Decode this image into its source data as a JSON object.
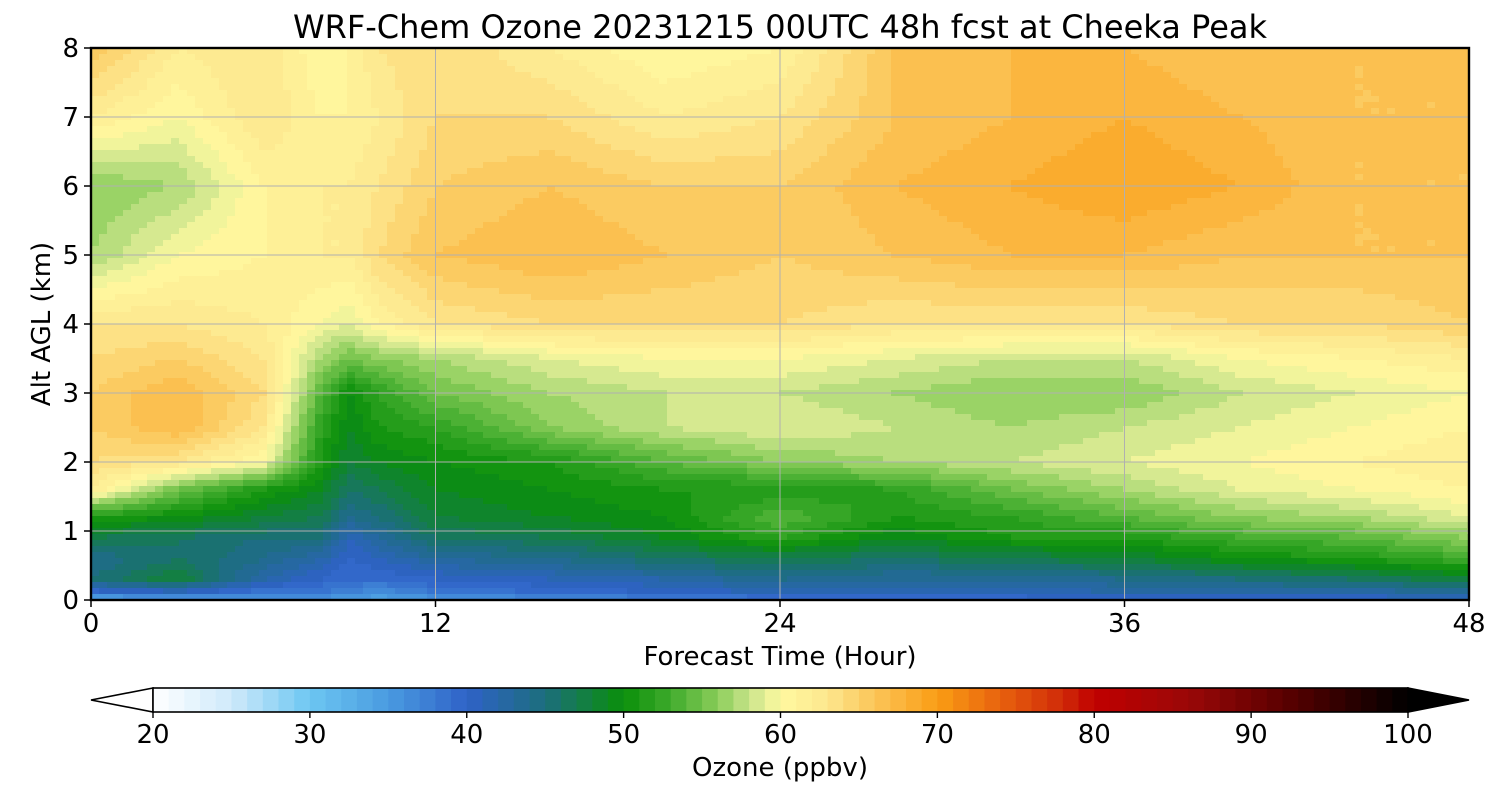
{
  "chart_data": {
    "type": "heatmap",
    "title": "WRF-Chem Ozone  20231215 00UTC 48h fcst at Cheeka Peak",
    "xlabel": "Forecast Time (Hour)",
    "ylabel": "Alt AGL (km)",
    "xlim": [
      0,
      48
    ],
    "ylim": [
      0,
      8
    ],
    "x_ticks": [
      0,
      12,
      24,
      36,
      48
    ],
    "y_ticks": [
      0,
      1,
      2,
      3,
      4,
      5,
      6,
      7,
      8
    ],
    "grid": true,
    "x": [
      0,
      3,
      6,
      8,
      9,
      10,
      12,
      16,
      20,
      24,
      28,
      32,
      36,
      40,
      44,
      48
    ],
    "y": [
      0,
      0.1,
      0.3,
      0.6,
      0.9,
      1.2,
      1.6,
      2.0,
      2.5,
      3.0,
      3.5,
      4.0,
      5.0,
      6.0,
      7.0,
      8.0
    ],
    "z": [
      [
        33,
        34,
        36,
        35,
        34,
        34,
        35,
        36,
        37,
        38,
        38,
        39,
        40,
        40,
        40,
        40
      ],
      [
        39,
        40,
        38,
        38,
        37,
        36,
        38,
        39,
        40,
        41,
        41,
        41,
        42,
        42,
        42,
        43
      ],
      [
        45,
        48,
        42,
        40,
        39,
        39,
        40,
        41,
        42,
        44,
        43,
        43,
        44,
        45,
        46,
        48
      ],
      [
        44,
        46,
        44,
        42,
        40,
        41,
        43,
        44,
        46,
        47,
        46,
        47,
        48,
        50,
        51,
        53
      ],
      [
        47,
        46,
        45,
        45,
        41,
        43,
        46,
        47,
        49,
        52,
        49,
        51,
        51,
        53,
        54,
        56
      ],
      [
        51,
        50,
        48,
        47,
        44,
        45,
        48,
        49,
        50,
        54,
        51,
        52,
        54,
        56,
        57,
        59
      ],
      [
        62,
        55,
        51,
        49,
        46,
        47,
        49,
        50,
        51,
        51,
        52,
        55,
        57,
        59,
        60,
        61
      ],
      [
        64,
        63,
        60,
        51,
        48,
        49,
        50,
        51,
        54,
        56,
        57,
        58,
        59,
        60,
        61,
        62
      ],
      [
        65,
        67,
        63,
        52,
        49,
        51,
        52,
        56,
        58,
        59,
        58,
        57,
        58,
        59,
        60,
        61
      ],
      [
        65,
        67,
        64,
        54,
        50,
        52,
        55,
        57,
        58,
        58,
        57,
        56,
        56,
        58,
        59,
        60
      ],
      [
        64,
        65,
        63,
        57,
        55,
        56,
        57,
        59,
        60,
        60,
        59,
        58,
        58,
        60,
        61,
        62
      ],
      [
        63,
        63,
        62,
        60,
        59,
        61,
        63,
        64,
        64,
        64,
        63,
        63,
        63,
        64,
        64,
        65
      ],
      [
        57,
        60,
        61,
        62,
        62,
        64,
        66,
        67,
        66,
        65,
        66,
        67,
        67,
        66,
        66,
        66
      ],
      [
        56,
        57,
        61,
        62,
        62,
        63,
        65,
        66,
        65,
        65,
        67,
        68,
        69,
        68,
        66,
        66
      ],
      [
        62,
        60,
        63,
        61,
        61,
        62,
        64,
        64,
        62,
        63,
        66,
        67,
        68,
        67,
        66,
        66
      ],
      [
        66,
        62,
        63,
        60,
        61,
        63,
        64,
        62,
        60,
        61,
        66,
        67,
        67,
        66,
        66,
        66
      ]
    ],
    "colorbar": {
      "label": "Ozone  (ppbv)",
      "min": 20,
      "max": 100,
      "ticks": [
        "20",
        "30",
        "40",
        "50",
        "60",
        "70",
        "80",
        "90",
        "100"
      ],
      "extend": "both",
      "step": 1,
      "color_stops": [
        [
          20,
          "#ffffff"
        ],
        [
          25,
          "#cfeafa"
        ],
        [
          30,
          "#6cc6f2"
        ],
        [
          35,
          "#4a9be0"
        ],
        [
          40,
          "#2f62c8"
        ],
        [
          45,
          "#1c6e7c"
        ],
        [
          50,
          "#0a8f0a"
        ],
        [
          53,
          "#3fab2c"
        ],
        [
          56,
          "#8acd5a"
        ],
        [
          58,
          "#c8e48a"
        ],
        [
          60,
          "#fff9a0"
        ],
        [
          63,
          "#fde78e"
        ],
        [
          66,
          "#fbc558"
        ],
        [
          70,
          "#fa9d14"
        ],
        [
          74,
          "#e8620e"
        ],
        [
          78,
          "#d02a08"
        ],
        [
          80,
          "#c00000"
        ],
        [
          86,
          "#9a0808"
        ],
        [
          92,
          "#5c0000"
        ],
        [
          100,
          "#000000"
        ]
      ]
    }
  }
}
